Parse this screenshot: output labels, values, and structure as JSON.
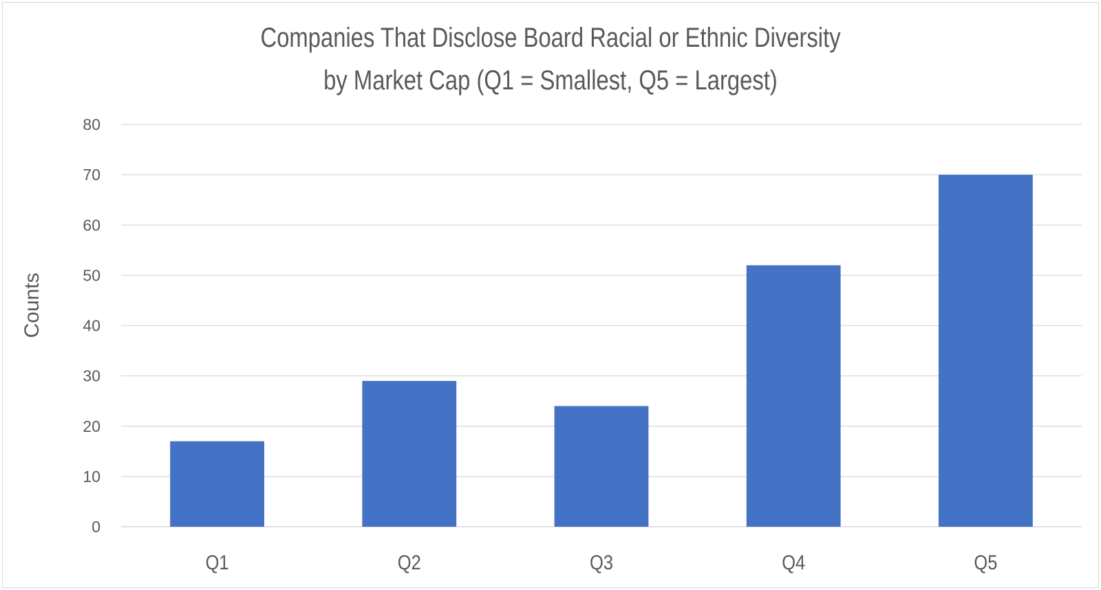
{
  "chart_data": {
    "type": "bar",
    "title": "Companies That Disclose Board Racial or Ethnic Diversity",
    "subtitle": "by Market Cap (Q1 = Smallest, Q5 = Largest)",
    "xlabel": "",
    "ylabel": "Counts",
    "categories": [
      "Q1",
      "Q2",
      "Q3",
      "Q4",
      "Q5"
    ],
    "values": [
      17,
      29,
      24,
      52,
      70
    ],
    "ylim": [
      0,
      80
    ],
    "yticks": [
      "0",
      "10",
      "20",
      "30",
      "40",
      "50",
      "60",
      "70",
      "80"
    ],
    "grid": true,
    "legend": "none",
    "bar_color": "#4472C4",
    "grid_color": "#d9d9d9",
    "text_color": "#595959"
  }
}
